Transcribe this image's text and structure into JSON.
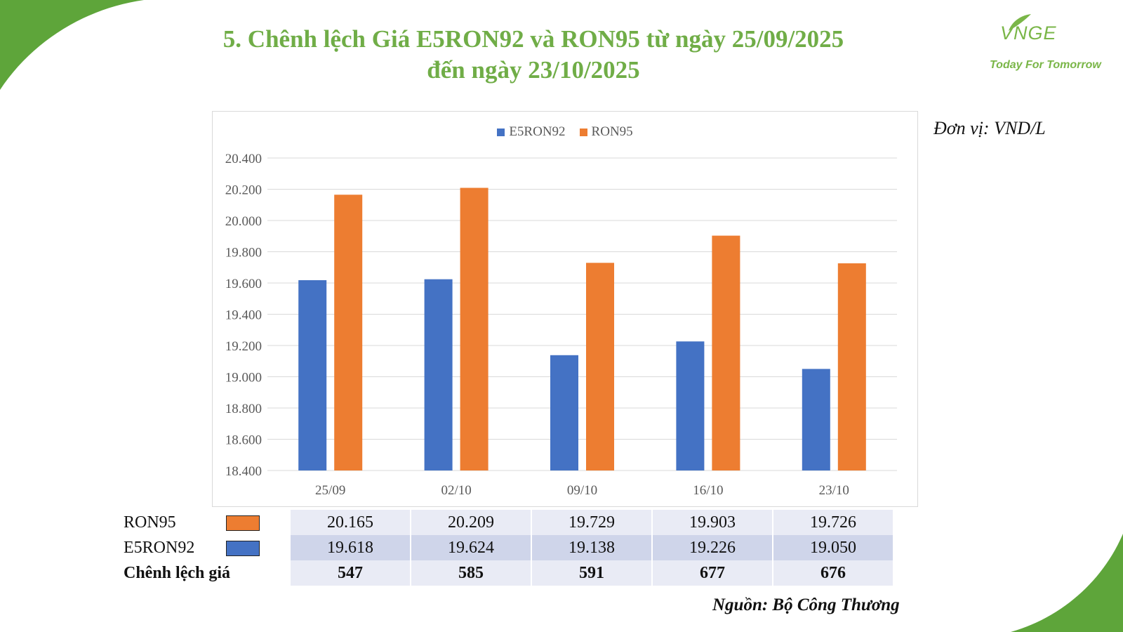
{
  "title_line1": "5. Chênh lệch Giá E5RON92 và RON95 từ ngày 25/09/2025",
  "title_line2": "đến ngày 23/10/2025",
  "logo": {
    "brand": "VNGE",
    "tagline": "Today For Tomorrow"
  },
  "unit_label": "Đơn vị: VND/L",
  "source": "Nguồn: Bộ Công Thương",
  "colors": {
    "E5RON92": "#4472c4",
    "RON95": "#ed7d31",
    "title": "#70ad47",
    "corner": "#5ea53a"
  },
  "chart_data": {
    "type": "bar",
    "categories": [
      "25/09",
      "02/10",
      "09/10",
      "16/10",
      "23/10"
    ],
    "series": [
      {
        "name": "E5RON92",
        "values": [
          19618,
          19624,
          19138,
          19226,
          19050
        ]
      },
      {
        "name": "RON95",
        "values": [
          20165,
          20209,
          19729,
          19903,
          19726
        ]
      }
    ],
    "ylim": [
      18400,
      20400
    ],
    "yticks": [
      "18.400",
      "18.600",
      "18.800",
      "19.000",
      "19.200",
      "19.400",
      "19.600",
      "19.800",
      "20.000",
      "20.200",
      "20.400"
    ],
    "grid": true,
    "legend": "top"
  },
  "table": {
    "rows": [
      {
        "label": "RON95",
        "values": [
          "20.165",
          "20.209",
          "19.729",
          "19.903",
          "19.726"
        ]
      },
      {
        "label": "E5RON92",
        "values": [
          "19.618",
          "19.624",
          "19.138",
          "19.226",
          "19.050"
        ]
      },
      {
        "label": "Chênh lệch giá",
        "values": [
          "547",
          "585",
          "591",
          "677",
          "676"
        ]
      }
    ]
  }
}
